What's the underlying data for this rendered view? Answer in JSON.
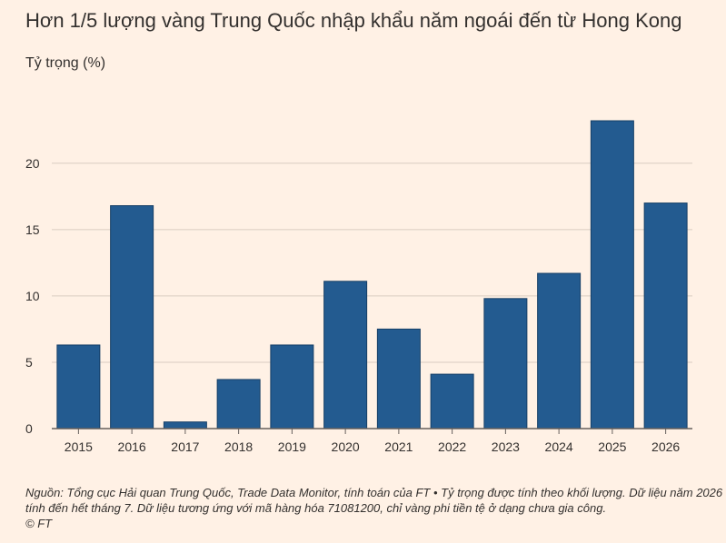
{
  "chart_data": {
    "type": "bar",
    "title": "Hơn 1/5 lượng vàng Trung Quốc nhập khẩu năm ngoái đến từ Hong Kong",
    "ylabel": "Tỷ trọng (%)",
    "xlabel": "",
    "categories": [
      "2015",
      "2016",
      "2017",
      "2018",
      "2019",
      "2020",
      "2021",
      "2022",
      "2023",
      "2024",
      "2025",
      "2026"
    ],
    "values": [
      6.3,
      16.8,
      0.5,
      3.7,
      6.3,
      11.1,
      7.5,
      4.1,
      9.8,
      11.7,
      23.2,
      17.0
    ],
    "ylim": [
      0,
      23.2
    ],
    "yticks": [
      0,
      5,
      10,
      15,
      20
    ],
    "grid": true,
    "bar_color": "#235b90"
  },
  "footer": {
    "line1": "Nguồn: Tổng cục Hải quan Trung Quốc, Trade Data Monitor, tính toán của FT • Tỷ trọng được tính theo khối lượng. Dữ liệu năm 2026",
    "line2": "tính đến hết tháng 7. Dữ liệu tương ứng với mã hàng hóa 71081200, chỉ vàng phi tiền tệ ở dạng chưa gia công.",
    "copyright": "© FT"
  }
}
